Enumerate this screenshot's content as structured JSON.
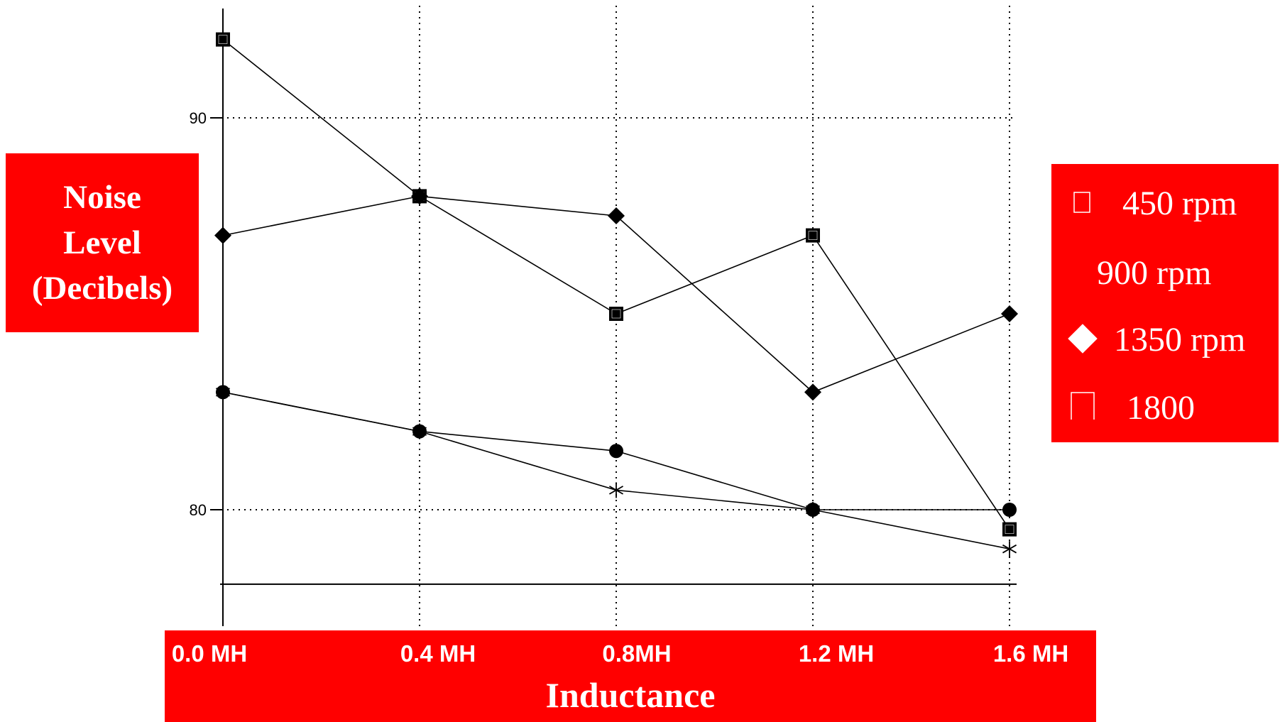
{
  "chart_data": {
    "type": "line",
    "xlabel": "Inductance",
    "ylabel": [
      "Noise",
      "Level",
      "(Decibels)"
    ],
    "categories": [
      "0.0 MH",
      "0.4 MH",
      "0.8MH",
      "1.2 MH",
      "1.6 MH"
    ],
    "y_ticks": [
      "90",
      "80"
    ],
    "ylim": [
      78.1,
      92.9
    ],
    "grid": true,
    "legend_position": "right",
    "series": [
      {
        "marker": "square",
        "values": [
          92.0,
          88.0,
          85.0,
          87.0,
          79.5
        ]
      },
      {
        "marker": "diamond",
        "values": [
          87.0,
          88.0,
          87.5,
          83.0,
          85.0
        ]
      },
      {
        "marker": "circle",
        "values": [
          83.0,
          82.0,
          81.5,
          80.0,
          80.0
        ]
      },
      {
        "marker": "asterisk",
        "values": [
          83.0,
          82.0,
          80.5,
          80.0,
          79.0
        ]
      }
    ],
    "legend": [
      {
        "marker": "small-square-outline",
        "label": "450 rpm"
      },
      {
        "marker": "none",
        "label": "900 rpm"
      },
      {
        "marker": "diamond-filled",
        "label": "1350 rpm"
      },
      {
        "marker": "square-outline",
        "label": "1800"
      }
    ]
  },
  "colors": {
    "box": "#ff0000",
    "box_text": "#ffffff",
    "line": "#000000"
  }
}
